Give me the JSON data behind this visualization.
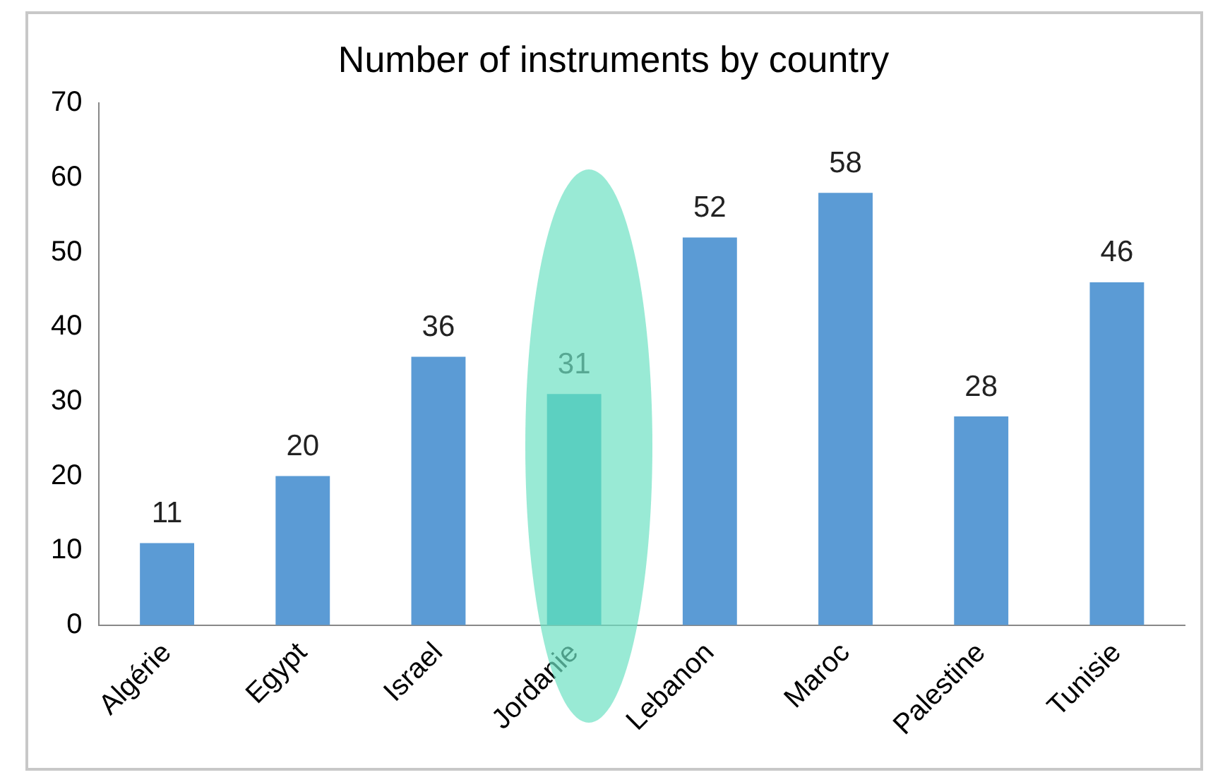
{
  "chart_data": {
    "type": "bar",
    "title": "Number of instruments by country",
    "categories": [
      "Algérie",
      "Egypt",
      "Israel",
      "Jordanie",
      "Lebanon",
      "Maroc",
      "Palestine",
      "Tunisie"
    ],
    "values": [
      11,
      20,
      36,
      31,
      52,
      58,
      28,
      46
    ],
    "colors": [
      "#5b9bd5",
      "#5b9bd5",
      "#5b9bd5",
      "#33a9bb",
      "#5b9bd5",
      "#5b9bd5",
      "#5b9bd5",
      "#5b9bd5"
    ],
    "ylim": [
      0,
      70
    ],
    "yticks": [
      0,
      10,
      20,
      30,
      40,
      50,
      60,
      70
    ],
    "grid": false,
    "legend": false,
    "data_labels": true
  }
}
